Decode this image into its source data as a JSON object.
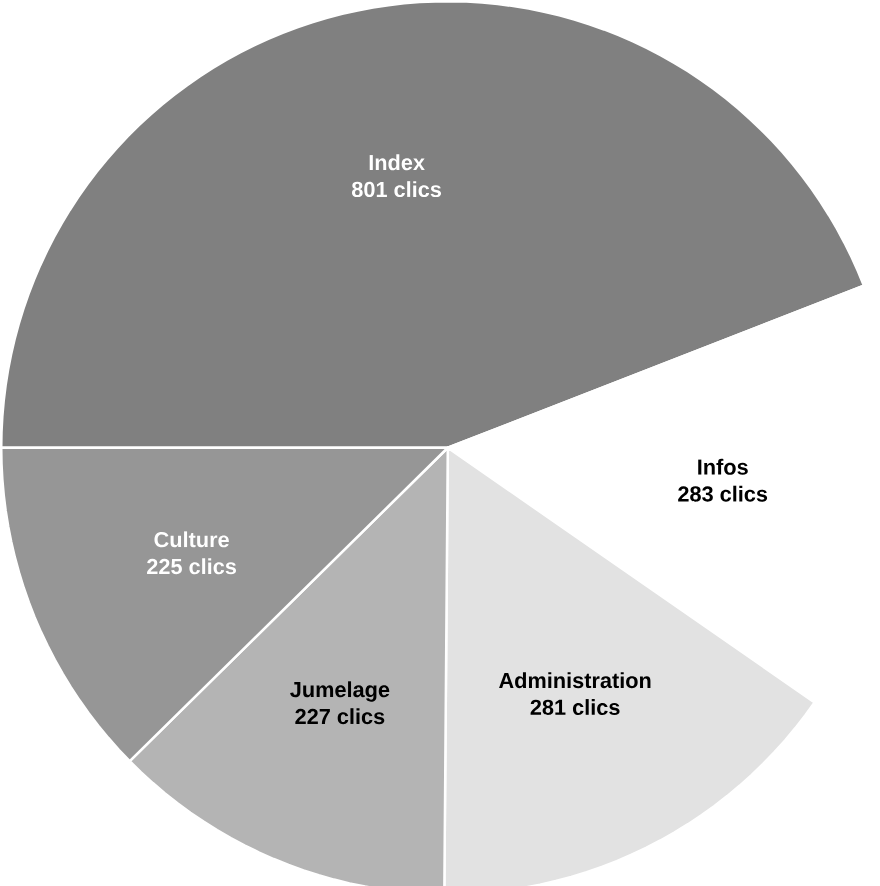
{
  "chart_data": {
    "type": "pie",
    "categories": [
      "Index",
      "Infos",
      "Administration",
      "Jumelage",
      "Culture"
    ],
    "values": [
      801,
      283,
      281,
      227,
      225
    ],
    "value_labels": [
      "801 clics",
      "283 clics",
      "281 clics",
      "227 clics",
      "225 clics"
    ],
    "colors": [
      "#808080",
      "#ffffff",
      "#e2e2e2",
      "#b4b4b4",
      "#969696"
    ]
  }
}
